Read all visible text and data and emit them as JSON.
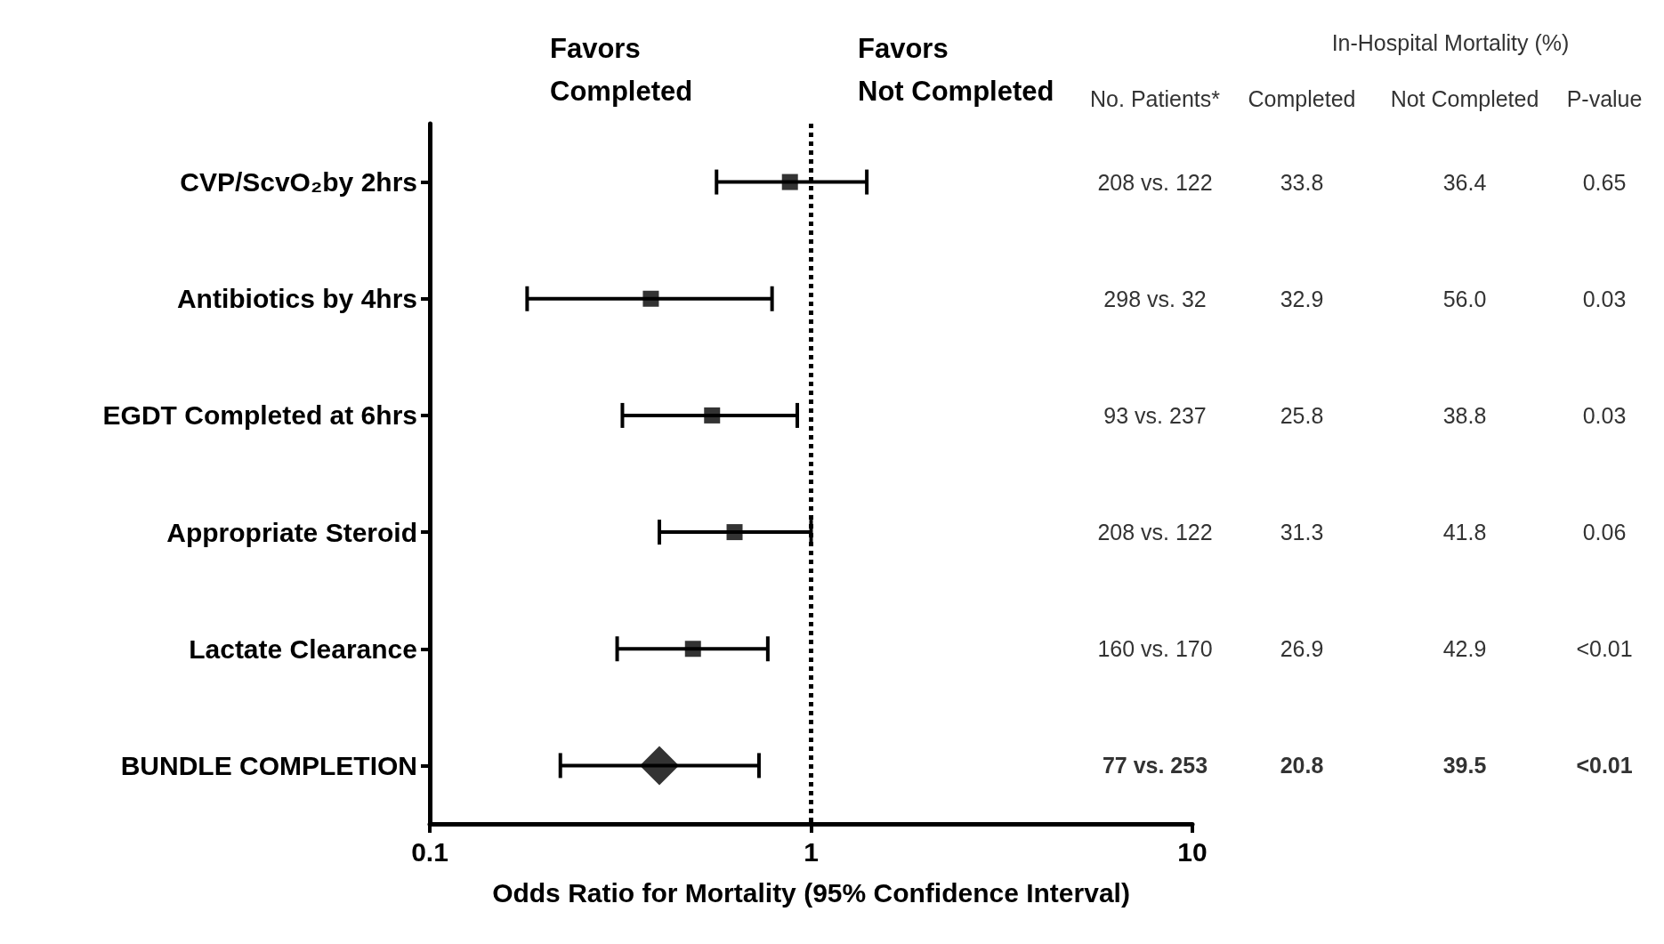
{
  "chart_data": {
    "type": "scatter",
    "orientation": "horizontal",
    "categories": [
      "CVP/ScvO₂by 2hrs",
      "Antibiotics by 4hrs",
      "EGDT Completed at 6hrs",
      "Appropriate Steroid",
      "Lactate Clearance",
      "BUNDLE COMPLETION"
    ],
    "series": [
      {
        "color": "#000000",
        "marker": "square",
        "values": [
          0.88,
          0.38,
          0.55,
          0.63,
          0.49,
          null
        ],
        "errors": [
          [
            0.565,
            1.4
          ],
          [
            0.18,
            0.79
          ],
          [
            0.32,
            0.92
          ],
          [
            0.4,
            1.0
          ],
          [
            0.31,
            0.77
          ],
          null
        ]
      },
      {
        "color": "#000000",
        "marker": "diamond",
        "values": [
          null,
          null,
          null,
          null,
          null,
          0.4
        ],
        "errors": [
          null,
          null,
          null,
          null,
          null,
          [
            0.22,
            0.73
          ]
        ]
      }
    ],
    "log": "x",
    "xlim": [
      0.1,
      10
    ],
    "xticks": [
      0.1,
      1,
      10
    ],
    "xlabel": "Odds Ratio for Mortality (95% Confidence Interval)",
    "ref_lines": [
      {
        "axis": "x",
        "value": 1,
        "line_style": "dotted"
      }
    ],
    "grid": false,
    "annotations": [
      "Favors\nCompleted",
      "Favors\nNot Completed",
      "In-Hospital Mortality (%)",
      "No. Patients*",
      "Completed",
      "Not Completed",
      "P-value",
      "208 vs. 122",
      "33.8",
      "36.4",
      "0.65",
      "298 vs. 32",
      "32.9",
      "56.0",
      "0.03",
      "93 vs. 237",
      "25.8",
      "38.8",
      "0.03",
      "208 vs. 122",
      "31.3",
      "41.8",
      "0.06",
      "160 vs. 170",
      "26.9",
      "42.9",
      "<0.01",
      "77 vs. 253",
      "20.8",
      "39.5",
      "<0.01"
    ]
  }
}
